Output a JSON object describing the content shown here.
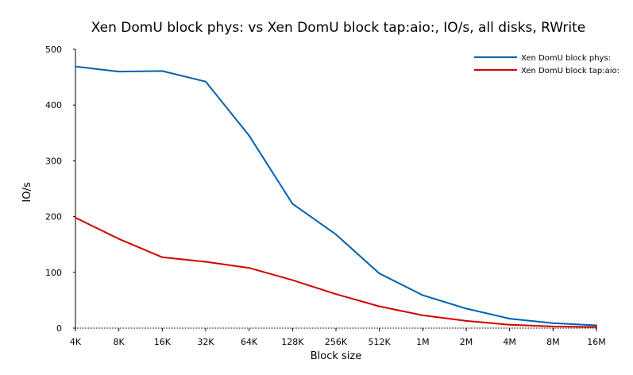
{
  "chart_data": {
    "type": "line",
    "title": "Xen DomU block phys: vs Xen DomU block tap:aio:, IO/s, all disks, RWrite",
    "xlabel": "Block size",
    "ylabel": "IO/s",
    "categories": [
      "4K",
      "8K",
      "16K",
      "32K",
      "64K",
      "128K",
      "256K",
      "512K",
      "1M",
      "2M",
      "4M",
      "8M",
      "16M"
    ],
    "ylim": [
      0,
      500
    ],
    "yticks": [
      0,
      100,
      200,
      300,
      400,
      500
    ],
    "grid": false,
    "legend_position": "top-right",
    "series": [
      {
        "name": "Xen DomU block phys:",
        "color": "#0060b0",
        "values": [
          469,
          460,
          461,
          442,
          345,
          223,
          168,
          98,
          59,
          35,
          17,
          9,
          5
        ]
      },
      {
        "name": "Xen DomU block tap:aio:",
        "color": "#d00000",
        "values": [
          198,
          160,
          127,
          119,
          108,
          86,
          61,
          39,
          23,
          13,
          6,
          3,
          2
        ]
      }
    ]
  }
}
